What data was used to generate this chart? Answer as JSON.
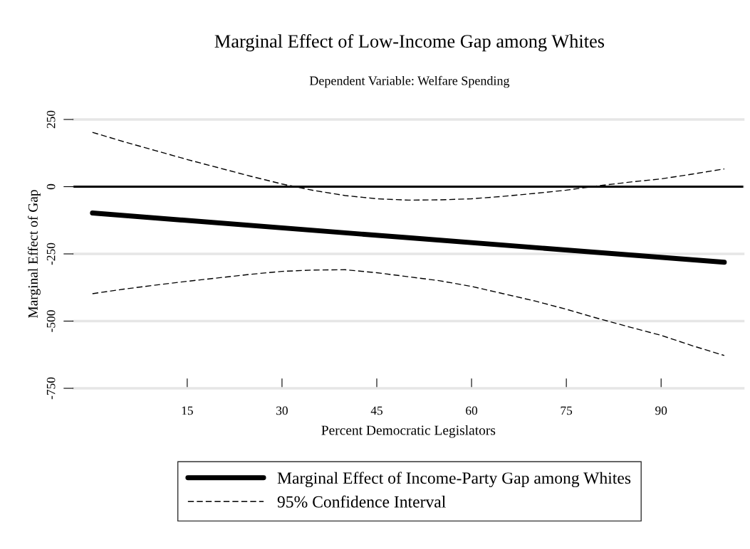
{
  "chart_data": {
    "type": "line",
    "title": "Marginal Effect of Low-Income Gap among Whites",
    "subtitle": "Dependent Variable: Welfare Spending",
    "xlabel": "Percent Democratic Legislators",
    "ylabel": "Marginal Effect of Gap",
    "xlim": [
      -3,
      103
    ],
    "ylim": [
      -750,
      250
    ],
    "xticks": [
      15,
      30,
      45,
      60,
      75,
      90
    ],
    "yticks": [
      250,
      0,
      -250,
      -500,
      -750
    ],
    "grid": "y",
    "legend": "bottom",
    "ref_lines": [
      {
        "axis": "y",
        "value": 0,
        "color": "#000000",
        "line_style": "solid"
      }
    ],
    "series": [
      {
        "name": "Marginal Effect of Income-Party Gap among Whites",
        "color": "#000000",
        "line_style": "solid",
        "x": [
          0,
          50,
          100
        ],
        "values": [
          -98,
          -190,
          -281
        ]
      },
      {
        "name": "95% Confidence Interval",
        "color": "#000000",
        "line_style": "dashed",
        "x": [
          0,
          5,
          10,
          15,
          20,
          25,
          30,
          35,
          40,
          45,
          50,
          55,
          60,
          65,
          70,
          75,
          80,
          85,
          90,
          95,
          100
        ],
        "values": [
          202,
          167,
          134,
          101,
          70,
          39,
          10,
          -14,
          -33,
          -45,
          -50,
          -49,
          -45,
          -36,
          -25,
          -13,
          3,
          17,
          29,
          47,
          66
        ]
      },
      {
        "color": "#000000",
        "line_style": "dashed",
        "x": [
          0,
          5,
          10,
          15,
          20,
          25,
          30,
          35,
          40,
          45,
          50,
          55,
          60,
          65,
          70,
          75,
          80,
          85,
          90,
          95,
          100
        ],
        "values": [
          -398,
          -381,
          -366,
          -352,
          -339,
          -326,
          -315,
          -310,
          -309,
          -320,
          -335,
          -350,
          -371,
          -398,
          -425,
          -456,
          -490,
          -522,
          -553,
          -592,
          -628
        ]
      }
    ]
  }
}
